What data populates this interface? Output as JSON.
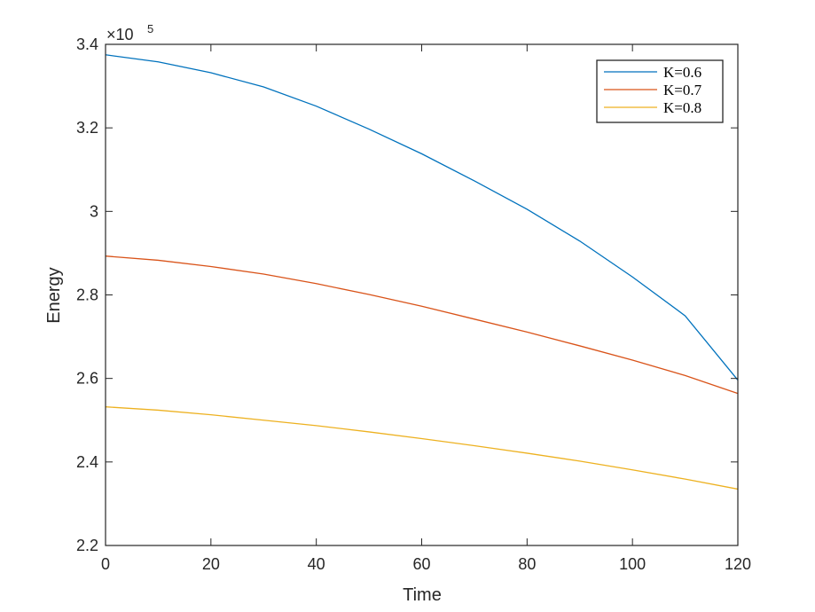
{
  "chart_data": {
    "type": "line",
    "title": "",
    "xlabel": "Time",
    "ylabel": "Energy",
    "xlim": [
      0,
      120
    ],
    "ylim": [
      2.2,
      3.4
    ],
    "y_multiplier": {
      "base": "×10",
      "exponent": "5"
    },
    "xticks": [
      0,
      20,
      40,
      60,
      80,
      100,
      120
    ],
    "yticks": [
      2.2,
      2.4,
      2.6,
      2.8,
      3.0,
      3.2,
      3.4
    ],
    "xtick_labels": [
      "0",
      "20",
      "40",
      "60",
      "80",
      "100",
      "120"
    ],
    "ytick_labels": [
      "2.2",
      "2.4",
      "2.6",
      "2.8",
      "3",
      "3.2",
      "3.4"
    ],
    "grid": false,
    "legend_position": "top-right",
    "x": [
      0,
      10,
      20,
      30,
      40,
      50,
      60,
      70,
      80,
      90,
      100,
      110,
      120
    ],
    "series": [
      {
        "name": "K=0.6",
        "color": "#0072BD",
        "values": [
          3.375,
          3.358,
          3.332,
          3.298,
          3.252,
          3.197,
          3.138,
          3.073,
          3.005,
          2.929,
          2.843,
          2.75,
          2.596
        ]
      },
      {
        "name": "K=0.7",
        "color": "#D95319",
        "values": [
          2.893,
          2.883,
          2.868,
          2.85,
          2.827,
          2.801,
          2.773,
          2.742,
          2.711,
          2.678,
          2.644,
          2.607,
          2.564
        ]
      },
      {
        "name": "K=0.8",
        "color": "#EDB120",
        "values": [
          2.532,
          2.524,
          2.513,
          2.5,
          2.487,
          2.472,
          2.456,
          2.439,
          2.421,
          2.402,
          2.381,
          2.359,
          2.335
        ]
      }
    ]
  }
}
